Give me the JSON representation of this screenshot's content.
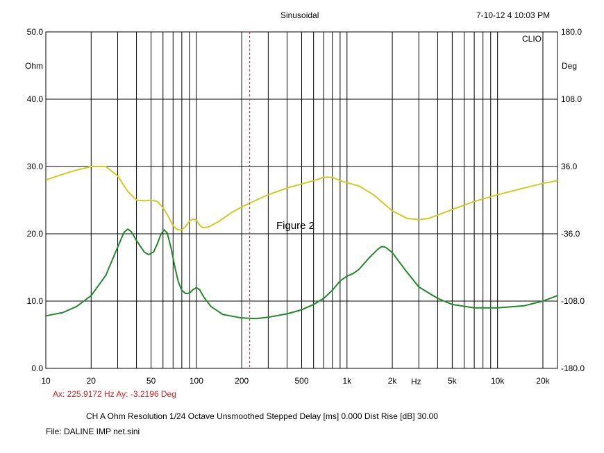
{
  "header": {
    "title": "Sinusoidal",
    "timestamp": "7-10-12 4 10:03 PM",
    "corner_label": "CLIO"
  },
  "annotation": "Figure 2",
  "readout": "Ax: 225.9172 Hz   Ay: -3.2196 Deg",
  "footer": {
    "settings": "CH A   Ohm   Resolution 1/24 Octave   Unsmoothed   Stepped   Delay [ms] 0.000   Dist Rise [dB] 30.00",
    "file": "File: DALINE IMP net.sini"
  },
  "chart_data": {
    "type": "line",
    "x_scale": "log",
    "xlim": [
      10,
      25000
    ],
    "ylim_left": [
      0,
      50
    ],
    "ylim_right": [
      -180,
      180
    ],
    "ylabel_left": "Ohm",
    "ylabel_right": "Deg",
    "xunit": "Hz",
    "grid": true,
    "x_tick_labels": [
      {
        "v": 10,
        "t": "10"
      },
      {
        "v": 20,
        "t": "20"
      },
      {
        "v": 50,
        "t": "50"
      },
      {
        "v": 100,
        "t": "100"
      },
      {
        "v": 200,
        "t": "200"
      },
      {
        "v": 500,
        "t": "500"
      },
      {
        "v": 1000,
        "t": "1k"
      },
      {
        "v": 2000,
        "t": "2k"
      },
      {
        "v": 5000,
        "t": "5k"
      },
      {
        "v": 10000,
        "t": "10k"
      },
      {
        "v": 20000,
        "t": "20k"
      }
    ],
    "y_left_ticks": [
      "0.0",
      "10.0",
      "20.0",
      "30.0",
      "40.0",
      "50.0"
    ],
    "y_right_ticks": [
      "-180.0",
      "-108.0",
      "-36.0",
      "36.0",
      "108.0",
      "180.0"
    ],
    "cursor_x": 225.9172,
    "series": [
      {
        "color": "#cccc22",
        "points": [
          [
            10,
            28.0
          ],
          [
            15,
            29.3
          ],
          [
            20,
            30.0
          ],
          [
            25,
            30.0
          ],
          [
            30,
            28.6
          ],
          [
            35,
            26.3
          ],
          [
            40,
            25.0
          ],
          [
            45,
            24.9
          ],
          [
            50,
            25.0
          ],
          [
            55,
            24.8
          ],
          [
            60,
            23.9
          ],
          [
            65,
            22.6
          ],
          [
            70,
            21.2
          ],
          [
            75,
            20.6
          ],
          [
            80,
            20.6
          ],
          [
            85,
            21.1
          ],
          [
            90,
            21.9
          ],
          [
            95,
            22.2
          ],
          [
            100,
            22.0
          ],
          [
            105,
            21.3
          ],
          [
            110,
            20.9
          ],
          [
            120,
            21.0
          ],
          [
            140,
            21.8
          ],
          [
            170,
            23.1
          ],
          [
            200,
            24.0
          ],
          [
            250,
            25.0
          ],
          [
            300,
            25.8
          ],
          [
            400,
            26.8
          ],
          [
            500,
            27.4
          ],
          [
            600,
            27.9
          ],
          [
            700,
            28.4
          ],
          [
            800,
            28.4
          ],
          [
            900,
            27.9
          ],
          [
            1000,
            27.6
          ],
          [
            1200,
            27.1
          ],
          [
            1500,
            25.8
          ],
          [
            2000,
            23.4
          ],
          [
            2500,
            22.3
          ],
          [
            3000,
            22.1
          ],
          [
            3500,
            22.3
          ],
          [
            5000,
            23.6
          ],
          [
            7000,
            24.8
          ],
          [
            10000,
            25.8
          ],
          [
            15000,
            26.8
          ],
          [
            20000,
            27.5
          ],
          [
            25000,
            27.9
          ]
        ]
      },
      {
        "color": "#22882a",
        "points": [
          [
            10,
            7.8
          ],
          [
            13,
            8.3
          ],
          [
            16,
            9.2
          ],
          [
            20,
            10.8
          ],
          [
            25,
            13.8
          ],
          [
            30,
            18.0
          ],
          [
            33,
            20.2
          ],
          [
            35,
            20.7
          ],
          [
            37,
            20.3
          ],
          [
            40,
            19.0
          ],
          [
            45,
            17.3
          ],
          [
            48,
            16.9
          ],
          [
            52,
            17.3
          ],
          [
            55,
            18.5
          ],
          [
            58,
            19.9
          ],
          [
            61,
            20.6
          ],
          [
            64,
            20.1
          ],
          [
            68,
            17.8
          ],
          [
            72,
            15.0
          ],
          [
            76,
            12.8
          ],
          [
            80,
            11.6
          ],
          [
            85,
            11.1
          ],
          [
            90,
            11.2
          ],
          [
            95,
            11.7
          ],
          [
            100,
            12.0
          ],
          [
            105,
            11.7
          ],
          [
            112,
            10.6
          ],
          [
            125,
            9.2
          ],
          [
            150,
            8.0
          ],
          [
            200,
            7.5
          ],
          [
            250,
            7.4
          ],
          [
            300,
            7.6
          ],
          [
            400,
            8.1
          ],
          [
            500,
            8.7
          ],
          [
            600,
            9.5
          ],
          [
            700,
            10.4
          ],
          [
            800,
            11.6
          ],
          [
            900,
            13.0
          ],
          [
            1000,
            13.7
          ],
          [
            1100,
            14.1
          ],
          [
            1200,
            14.7
          ],
          [
            1400,
            16.4
          ],
          [
            1600,
            17.7
          ],
          [
            1700,
            18.1
          ],
          [
            1800,
            18.0
          ],
          [
            2000,
            17.2
          ],
          [
            2500,
            14.3
          ],
          [
            3000,
            12.1
          ],
          [
            4000,
            10.4
          ],
          [
            5000,
            9.5
          ],
          [
            7000,
            9.0
          ],
          [
            10000,
            9.0
          ],
          [
            15000,
            9.3
          ],
          [
            20000,
            10.0
          ],
          [
            25000,
            10.8
          ]
        ]
      }
    ]
  }
}
